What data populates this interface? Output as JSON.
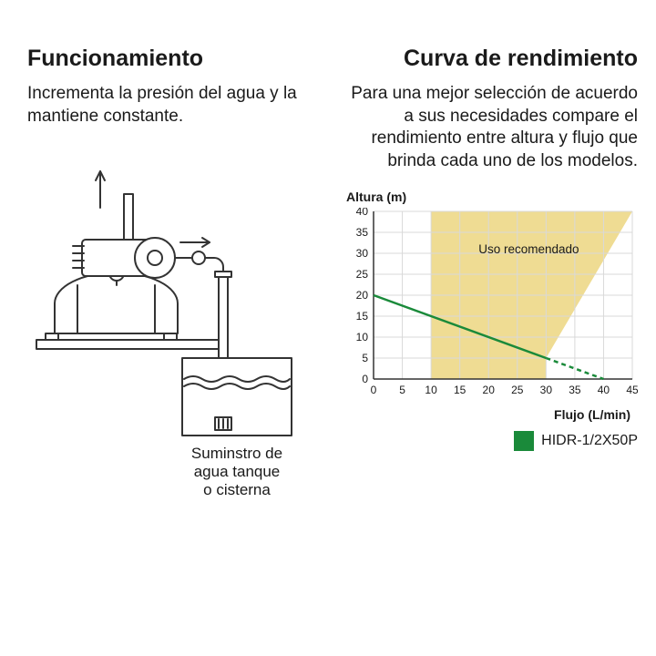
{
  "left": {
    "heading": "Funcionamiento",
    "subtitle": "Incrementa la presión del agua y la mantiene constante.",
    "caption_line1": "Suminstro de",
    "caption_line2": "agua tanque",
    "caption_line3": "o cisterna",
    "diagram": {
      "stroke": "#333333",
      "stroke_width": 2
    }
  },
  "right": {
    "heading": "Curva de rendimiento",
    "subtitle": "Para una mejor selección de acuerdo a sus necesidades compare el rendimiento entre altura y flujo que brinda cada uno de los modelos.",
    "chart": {
      "ylabel": "Altura (m)",
      "xlabel": "Flujo (L/min)",
      "xlim": [
        0,
        45
      ],
      "ylim": [
        0,
        40
      ],
      "xticks": [
        0,
        5,
        10,
        15,
        20,
        25,
        30,
        35,
        40,
        45
      ],
      "yticks": [
        0,
        5,
        10,
        15,
        20,
        25,
        30,
        35,
        40
      ],
      "grid_color": "#d9d9d9",
      "axis_color": "#333333",
      "recommended_fill": "#efdc93",
      "recommended_label": "Uso recomendado",
      "recommended_polygon_xy": [
        [
          10,
          0
        ],
        [
          10,
          40
        ],
        [
          45,
          40
        ],
        [
          30,
          5
        ],
        [
          30,
          0
        ]
      ],
      "series": [
        {
          "name": "HIDR-1/2X50P",
          "color": "#1a8a3a",
          "solid_xy": [
            [
              0,
              20
            ],
            [
              30,
              5
            ]
          ],
          "dashed_xy": [
            [
              30,
              5
            ],
            [
              40,
              0
            ]
          ],
          "line_width": 2.5
        }
      ],
      "tick_fontsize": 12
    },
    "legend": {
      "swatch_color": "#1a8a3a",
      "label": "HIDR-1/2X50P"
    }
  }
}
